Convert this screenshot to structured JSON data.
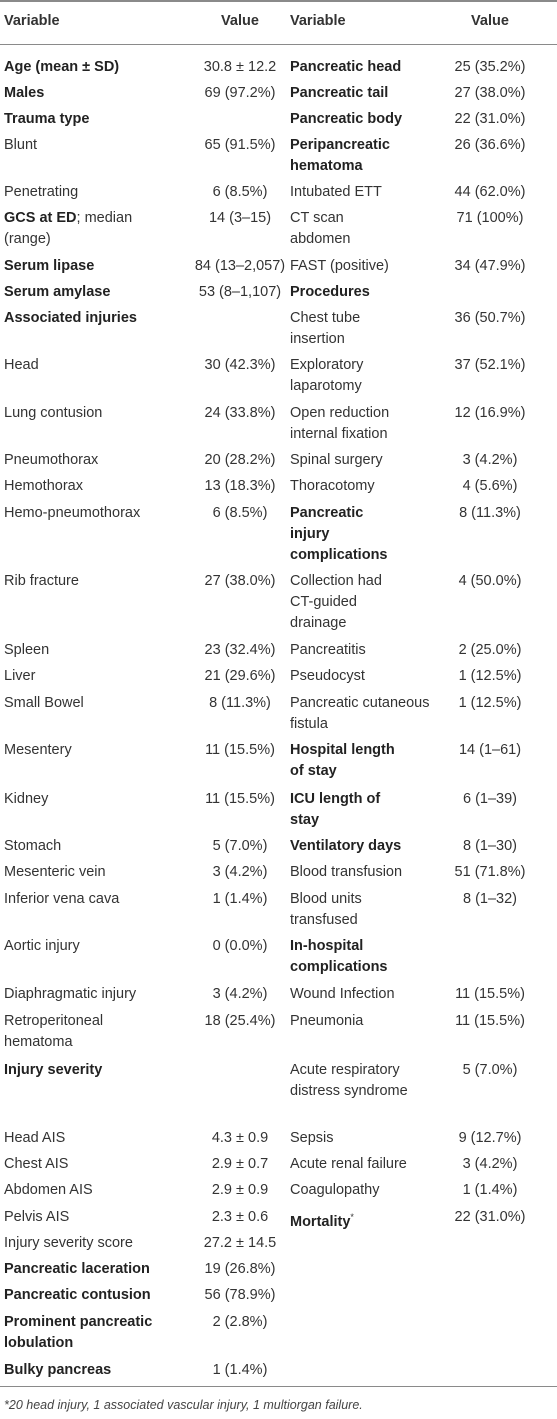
{
  "headers": {
    "variable": "Variable",
    "value": "Value"
  },
  "left_rows": [
    {
      "label": "Age (mean ± SD)",
      "value": "30.8 ± 12.2",
      "bold": true
    },
    {
      "label": "Males",
      "value": "69 (97.2%)",
      "bold": true
    },
    {
      "label": "Trauma type",
      "value": "",
      "bold": true
    },
    {
      "label": "Blunt",
      "value": "65 (91.5%)",
      "bold": false
    },
    {
      "label": "Penetrating",
      "value": "6 (8.5%)",
      "bold": false
    },
    {
      "label": "GCS at ED",
      "label_suffix": "; median (range)",
      "value": "14 (3–15)",
      "bold": true
    },
    {
      "label": "Serum lipase",
      "value": "84 (13–2,057)",
      "bold": true
    },
    {
      "label": "Serum amylase",
      "value": "53 (8–1,107)",
      "bold": true
    },
    {
      "label": "Associated injuries",
      "value": "",
      "bold": true
    },
    {
      "label": "Head",
      "value": "30 (42.3%)",
      "bold": false
    },
    {
      "label": "Lung contusion",
      "value": "24 (33.8%)",
      "bold": false
    },
    {
      "label": "Pneumothorax",
      "value": "20 (28.2%)",
      "bold": false
    },
    {
      "label": "Hemothorax",
      "value": "13 (18.3%)",
      "bold": false
    },
    {
      "label": "Hemo-pneumothorax",
      "value": "6 (8.5%)",
      "bold": false
    },
    {
      "label": "Rib fracture",
      "value": "27 (38.0%)",
      "bold": false
    },
    {
      "label": "Spleen",
      "value": "23 (32.4%)",
      "bold": false
    },
    {
      "label": "Liver",
      "value": "21 (29.6%)",
      "bold": false
    },
    {
      "label": "Small Bowel",
      "value": "8 (11.3%)",
      "bold": false
    },
    {
      "label": "Mesentery",
      "value": "11 (15.5%)",
      "bold": false
    },
    {
      "label": "Kidney",
      "value": "11 (15.5%)",
      "bold": false
    },
    {
      "label": "Stomach",
      "value": "5 (7.0%)",
      "bold": false
    },
    {
      "label": "Mesenteric vein",
      "value": "3 (4.2%)",
      "bold": false
    },
    {
      "label": "Inferior vena cava",
      "value": "1 (1.4%)",
      "bold": false
    },
    {
      "label": "Aortic injury",
      "value": "0 (0.0%)",
      "bold": false
    },
    {
      "label": "Diaphragmatic injury",
      "value": "3 (4.2%)",
      "bold": false
    },
    {
      "label": "Retroperitoneal hematoma",
      "value": "18 (25.4%)",
      "bold": false
    },
    {
      "label": "Injury severity",
      "value": "",
      "bold": true
    },
    {
      "label": "Head AIS",
      "value": "4.3 ± 0.9",
      "bold": false
    },
    {
      "label": "Chest AIS",
      "value": "2.9 ± 0.7",
      "bold": false
    },
    {
      "label": "Abdomen AIS",
      "value": "2.9 ± 0.9",
      "bold": false
    },
    {
      "label": "Pelvis AIS",
      "value": "2.3 ± 0.6",
      "bold": false
    },
    {
      "label": "Injury severity score",
      "value": "27.2 ± 14.5",
      "bold": false
    },
    {
      "label": "Pancreatic laceration",
      "value": "19 (26.8%)",
      "bold": true
    },
    {
      "label": "Pancreatic contusion",
      "value": "56 (78.9%)",
      "bold": true
    },
    {
      "label": "Prominent pancreatic lobulation",
      "value": "2 (2.8%)",
      "bold": true
    },
    {
      "label": "Bulky pancreas",
      "value": "1 (1.4%)",
      "bold": true
    }
  ],
  "right_rows": [
    {
      "label": "Pancreatic head",
      "value": "25 (35.2%)",
      "bold": true
    },
    {
      "label": "Pancreatic tail",
      "value": "27 (38.0%)",
      "bold": true
    },
    {
      "label": "Pancreatic body",
      "value": "22 (31.0%)",
      "bold": true
    },
    {
      "label": "Peripancreatic hematoma",
      "value": "26 (36.6%)",
      "bold": true
    },
    {
      "label": "Intubated ETT",
      "value": "44 (62.0%)",
      "bold": false
    },
    {
      "label": "CT scan abdomen",
      "value": "71 (100%)",
      "bold": false
    },
    {
      "label": "FAST (positive)",
      "value": "34 (47.9%)",
      "bold": false
    },
    {
      "label": "Procedures",
      "value": "",
      "bold": true
    },
    {
      "label": "Chest tube insertion",
      "value": "36 (50.7%)",
      "bold": false
    },
    {
      "label": "Exploratory laparotomy",
      "value": "37 (52.1%)",
      "bold": false
    },
    {
      "label": "Open reduction internal fixation",
      "value": "12 (16.9%)",
      "bold": false
    },
    {
      "label": "Spinal surgery",
      "value": "3 (4.2%)",
      "bold": false
    },
    {
      "label": "Thoracotomy",
      "value": "4 (5.6%)",
      "bold": false
    },
    {
      "label": "Pancreatic injury complications",
      "value": "8 (11.3%)",
      "bold": true
    },
    {
      "label": "Collection had CT-guided drainage",
      "value": "4 (50.0%)",
      "bold": false
    },
    {
      "label": "Pancreatitis",
      "value": "2 (25.0%)",
      "bold": false
    },
    {
      "label": "Pseudocyst",
      "value": "1 (12.5%)",
      "bold": false
    },
    {
      "label": "Pancreatic cutaneous fistula",
      "value": "1 (12.5%)",
      "bold": false
    },
    {
      "label": "Hospital length of stay",
      "value": "14 (1–61)",
      "bold": true
    },
    {
      "label": "ICU length of stay",
      "value": "6 (1–39)",
      "bold": true
    },
    {
      "label": "Ventilatory days",
      "value": "8 (1–30)",
      "bold": true
    },
    {
      "label": "Blood transfusion",
      "value": "51 (71.8%)",
      "bold": false
    },
    {
      "label": "Blood units transfused",
      "value": "8 (1–32)",
      "bold": false
    },
    {
      "label": "In-hospital complications",
      "value": "",
      "bold": true
    },
    {
      "label": "Wound Infection",
      "value": "11 (15.5%)",
      "bold": false
    },
    {
      "label": "Pneumonia",
      "value": "11 (15.5%)",
      "bold": false
    },
    {
      "label": "Acute respiratory distress syndrome",
      "value": "5 (7.0%)",
      "bold": false
    },
    {
      "label": "Sepsis",
      "value": "9 (12.7%)",
      "bold": false
    },
    {
      "label": "Acute renal failure",
      "value": "3 (4.2%)",
      "bold": false
    },
    {
      "label": "Coagulopathy",
      "value": "1 (1.4%)",
      "bold": false
    },
    {
      "label": "Mortality",
      "label_sup": "*",
      "value": "22 (31.0%)",
      "bold": true
    }
  ],
  "footnote": "*20 head injury, 1 associated vascular injury, 1 multiorgan failure."
}
